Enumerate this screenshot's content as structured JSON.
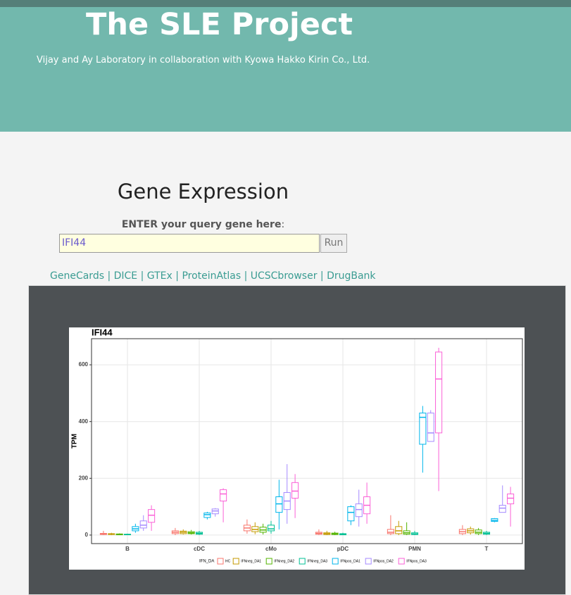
{
  "header": {
    "title": "The SLE Project",
    "subtitle": "Vijay and Ay Laboratory in collaboration with Kyowa Hakko Kirin Co., Ltd."
  },
  "section_title": "Gene Expression",
  "query": {
    "prompt": "ENTER your query gene here",
    "prompt_suffix": ":",
    "value": "IFI44",
    "button": "Run"
  },
  "links": [
    "GeneCards",
    "DICE",
    "GTEx",
    "ProteinAtlas",
    "UCSCbrowser",
    "DrugBank"
  ],
  "chart_data": {
    "type": "box",
    "title": "IFI44",
    "y_label": "TPM",
    "legend_title": "IFN_DA",
    "legend": "bottom",
    "grid": true,
    "categories": [
      "B",
      "cDC",
      "cMo",
      "pDC",
      "PMN",
      "T"
    ],
    "ylim": [
      -30,
      692
    ],
    "yticks": [
      0,
      200,
      400,
      600
    ],
    "series": [
      {
        "name": "HC",
        "color": "#F8766D",
        "min": [
          0,
          0,
          5,
          0,
          0,
          0
        ],
        "q1": [
          2,
          5,
          15,
          3,
          5,
          5
        ],
        "median": [
          4,
          10,
          25,
          6,
          10,
          12
        ],
        "q3": [
          6,
          15,
          35,
          10,
          20,
          20
        ],
        "max": [
          15,
          25,
          55,
          20,
          70,
          35
        ]
      },
      {
        "name": "IFNneg_DA1",
        "color": "#C49A00",
        "min": [
          0,
          2,
          3,
          0,
          0,
          2
        ],
        "q1": [
          2,
          5,
          12,
          2,
          5,
          8
        ],
        "median": [
          3,
          10,
          20,
          5,
          15,
          15
        ],
        "q3": [
          5,
          14,
          30,
          8,
          30,
          22
        ],
        "max": [
          8,
          20,
          45,
          15,
          50,
          30
        ]
      },
      {
        "name": "IFNneg_DA2",
        "color": "#53B400",
        "min": [
          0,
          2,
          2,
          0,
          0,
          0
        ],
        "q1": [
          1,
          5,
          10,
          2,
          3,
          5
        ],
        "median": [
          2,
          8,
          18,
          4,
          8,
          10
        ],
        "q3": [
          4,
          12,
          28,
          7,
          15,
          18
        ],
        "max": [
          6,
          18,
          40,
          12,
          45,
          25
        ]
      },
      {
        "name": "IFNneg_DA3",
        "color": "#00C094",
        "min": [
          0,
          0,
          5,
          0,
          0,
          0
        ],
        "q1": [
          1,
          3,
          15,
          1,
          2,
          3
        ],
        "median": [
          2,
          6,
          22,
          3,
          4,
          6
        ],
        "q3": [
          3,
          10,
          35,
          5,
          8,
          10
        ],
        "max": [
          5,
          15,
          50,
          8,
          15,
          15
        ]
      },
      {
        "name": "IFNpos_DA1",
        "color": "#00B6EB",
        "min": [
          8,
          55,
          20,
          35,
          220,
          45
        ],
        "q1": [
          15,
          62,
          80,
          50,
          320,
          48
        ],
        "median": [
          22,
          72,
          110,
          80,
          415,
          52
        ],
        "q3": [
          30,
          78,
          135,
          100,
          430,
          58
        ],
        "max": [
          40,
          82,
          195,
          105,
          455,
          60
        ]
      },
      {
        "name": "IFNpos_DA2",
        "color": "#A58AFF",
        "min": [
          15,
          65,
          40,
          30,
          330,
          80
        ],
        "q1": [
          25,
          75,
          90,
          65,
          330,
          80
        ],
        "median": [
          35,
          85,
          120,
          90,
          360,
          95
        ],
        "q3": [
          50,
          92,
          150,
          110,
          430,
          105
        ],
        "max": [
          70,
          95,
          250,
          160,
          440,
          175
        ]
      },
      {
        "name": "IFNpos_DA3",
        "color": "#FB61D7",
        "min": [
          15,
          45,
          60,
          40,
          155,
          30
        ],
        "q1": [
          45,
          120,
          130,
          75,
          360,
          110
        ],
        "median": [
          70,
          145,
          155,
          105,
          550,
          130
        ],
        "q3": [
          90,
          160,
          185,
          135,
          645,
          145
        ],
        "max": [
          105,
          165,
          215,
          185,
          660,
          170
        ]
      }
    ]
  }
}
